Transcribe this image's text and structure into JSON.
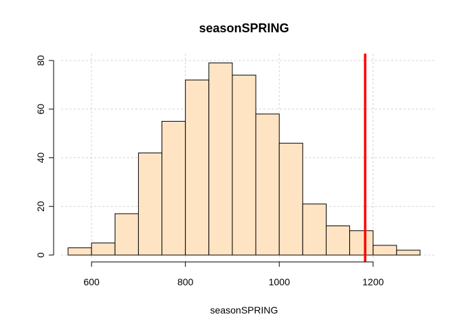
{
  "chart_data": {
    "type": "bar",
    "title": "seasonSPRING",
    "xlabel": "seasonSPRING",
    "ylabel": "",
    "xlim": [
      540,
      1315
    ],
    "ylim": [
      0,
      82
    ],
    "x_ticks": [
      600,
      800,
      1000,
      1200
    ],
    "y_ticks": [
      0,
      20,
      40,
      60,
      80
    ],
    "bin_width": 50,
    "bins": [
      {
        "start": 550,
        "end": 600,
        "count": 3
      },
      {
        "start": 600,
        "end": 650,
        "count": 5
      },
      {
        "start": 650,
        "end": 700,
        "count": 17
      },
      {
        "start": 700,
        "end": 750,
        "count": 42
      },
      {
        "start": 750,
        "end": 800,
        "count": 55
      },
      {
        "start": 800,
        "end": 850,
        "count": 72
      },
      {
        "start": 850,
        "end": 900,
        "count": 79
      },
      {
        "start": 900,
        "end": 950,
        "count": 74
      },
      {
        "start": 950,
        "end": 1000,
        "count": 58
      },
      {
        "start": 1000,
        "end": 1050,
        "count": 46
      },
      {
        "start": 1050,
        "end": 1100,
        "count": 21
      },
      {
        "start": 1100,
        "end": 1150,
        "count": 12
      },
      {
        "start": 1150,
        "end": 1200,
        "count": 10
      },
      {
        "start": 1200,
        "end": 1250,
        "count": 4
      },
      {
        "start": 1250,
        "end": 1300,
        "count": 2
      }
    ],
    "reference_line": {
      "x": 1183,
      "color": "#ff0000"
    },
    "bar_color": "#ffe4c4",
    "grid": true
  }
}
